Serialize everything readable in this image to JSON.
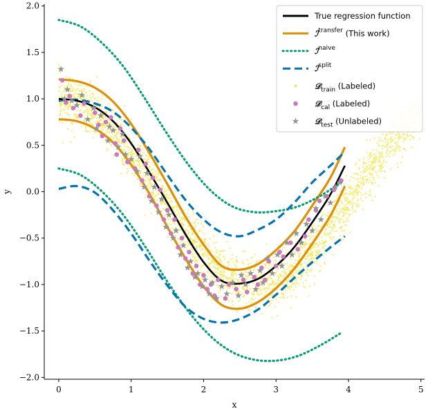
{
  "chart_data": {
    "type": "scatter",
    "xlabel": "x",
    "ylabel": "y",
    "xlim": [
      -0.2,
      5.05
    ],
    "ylim": [
      -2.02,
      2.02
    ],
    "xticks": [
      0,
      1,
      2,
      3,
      4,
      5
    ],
    "xtick_labels": [
      "0",
      "1",
      "2",
      "3",
      "4",
      "5"
    ],
    "yticks": [
      2.0,
      1.5,
      1.0,
      0.5,
      0.0,
      -0.5,
      -1.0,
      -1.5,
      -2.0
    ],
    "ytick_labels": [
      "2.0",
      "1.5",
      "1.0",
      "0.5",
      "0.0",
      "−0.5",
      "−1.0",
      "−1.5",
      "−2.0"
    ],
    "grid": false,
    "legend_position": "top-right",
    "colors": {
      "true": "#000000",
      "transfer": "#de8f05",
      "naive": "#029e73",
      "split": "#0173b2",
      "train": "#f0e442",
      "cal": "#cc78bc",
      "test": "#949494"
    },
    "legend": [
      {
        "key": "true",
        "text": "True regression function"
      },
      {
        "key": "transfer",
        "sym": "ℐ",
        "sup": "transfer",
        "text": " (This work)"
      },
      {
        "key": "naive",
        "sym": "ℐ",
        "sup": "naive",
        "text": ""
      },
      {
        "key": "split",
        "sym": "ℐ",
        "sup": "split",
        "text": ""
      },
      {
        "key": "train",
        "sym": "𝒟",
        "sub": "train",
        "text": " (Labeled)"
      },
      {
        "key": "cal",
        "sym": "𝒟",
        "sub": "cal",
        "text": " (Labeled)"
      },
      {
        "key": "test",
        "sym": "𝒟",
        "sub": "test",
        "text": " (Unlabeled)"
      }
    ],
    "series": [
      {
        "key": "true",
        "style": "solid",
        "x": [
          0.0,
          0.25,
          0.5,
          0.75,
          1.0,
          1.25,
          1.5,
          1.75,
          2.0,
          2.25,
          2.5,
          2.75,
          3.0,
          3.25,
          3.5,
          3.75,
          3.95
        ],
        "y": [
          1.0,
          0.98,
          0.91,
          0.76,
          0.52,
          0.21,
          -0.12,
          -0.46,
          -0.76,
          -0.96,
          -0.99,
          -0.94,
          -0.8,
          -0.6,
          -0.33,
          -0.03,
          0.28
        ]
      },
      {
        "key": "transfer",
        "style": "solid",
        "x": [
          0.0,
          0.25,
          0.5,
          0.75,
          1.0,
          1.25,
          1.5,
          1.75,
          2.0,
          2.25,
          2.5,
          2.75,
          3.0,
          3.25,
          3.5,
          3.75,
          3.95
        ],
        "y": [
          1.21,
          1.19,
          1.12,
          0.97,
          0.73,
          0.42,
          0.08,
          -0.27,
          -0.57,
          -0.8,
          -0.84,
          -0.78,
          -0.63,
          -0.43,
          -0.15,
          0.15,
          0.48
        ]
      },
      {
        "key": "transfer",
        "style": "solid",
        "x": [
          0.0,
          0.25,
          0.5,
          0.75,
          1.0,
          1.25,
          1.5,
          1.75,
          2.0,
          2.25,
          2.5,
          2.75,
          3.0,
          3.25,
          3.5,
          3.75,
          3.95
        ],
        "y": [
          0.78,
          0.76,
          0.68,
          0.53,
          0.29,
          -0.02,
          -0.38,
          -0.72,
          -1.02,
          -1.22,
          -1.26,
          -1.19,
          -1.04,
          -0.83,
          -0.56,
          -0.26,
          0.06
        ]
      },
      {
        "key": "naive",
        "style": "dotted",
        "x": [
          0.0,
          0.3,
          0.6,
          0.9,
          1.2,
          1.5,
          1.8,
          2.1,
          2.4,
          2.7,
          3.0,
          3.3,
          3.6,
          3.9
        ],
        "y": [
          1.85,
          1.78,
          1.6,
          1.34,
          0.99,
          0.62,
          0.28,
          0.01,
          -0.16,
          -0.22,
          -0.21,
          -0.16,
          -0.05,
          0.1
        ]
      },
      {
        "key": "naive",
        "style": "dotted",
        "x": [
          0.0,
          0.3,
          0.6,
          0.9,
          1.2,
          1.5,
          1.8,
          2.1,
          2.4,
          2.7,
          3.0,
          3.3,
          3.6,
          3.9
        ],
        "y": [
          0.25,
          0.18,
          0.0,
          -0.26,
          -0.6,
          -0.97,
          -1.3,
          -1.56,
          -1.73,
          -1.81,
          -1.82,
          -1.77,
          -1.66,
          -1.52
        ]
      },
      {
        "key": "split",
        "style": "dashed",
        "x": [
          0.0,
          0.25,
          0.5,
          0.75,
          1.0,
          1.25,
          1.5,
          1.75,
          2.0,
          2.25,
          2.5,
          2.75,
          3.0,
          3.25,
          3.5,
          3.75,
          3.95
        ],
        "y": [
          0.98,
          0.99,
          0.95,
          0.86,
          0.69,
          0.46,
          0.18,
          -0.09,
          -0.3,
          -0.44,
          -0.48,
          -0.41,
          -0.3,
          -0.12,
          0.1,
          0.28,
          0.43
        ]
      },
      {
        "key": "split",
        "style": "dashed",
        "x": [
          0.0,
          0.25,
          0.5,
          0.75,
          1.0,
          1.25,
          1.5,
          1.75,
          2.0,
          2.25,
          2.5,
          2.75,
          3.0,
          3.25,
          3.5,
          3.75,
          3.95
        ],
        "y": [
          0.03,
          0.06,
          -0.01,
          -0.2,
          -0.45,
          -0.74,
          -1.01,
          -1.24,
          -1.37,
          -1.41,
          -1.37,
          -1.27,
          -1.11,
          -0.93,
          -0.76,
          -0.6,
          -0.48
        ]
      }
    ],
    "cal_points": [
      [
        0.05,
        1.2
      ],
      [
        0.1,
        0.96
      ],
      [
        0.15,
        1.03
      ],
      [
        0.2,
        0.9
      ],
      [
        0.3,
        0.82
      ],
      [
        0.35,
        0.95
      ],
      [
        0.5,
        0.85
      ],
      [
        0.55,
        0.72
      ],
      [
        0.6,
        0.6
      ],
      [
        0.65,
        0.75
      ],
      [
        0.72,
        0.8
      ],
      [
        0.78,
        0.52
      ],
      [
        0.8,
        0.4
      ],
      [
        0.85,
        0.68
      ],
      [
        0.9,
        0.55
      ],
      [
        0.95,
        0.32
      ],
      [
        1.05,
        0.25
      ],
      [
        1.1,
        0.45
      ],
      [
        1.15,
        0.12
      ],
      [
        1.2,
        0.3
      ],
      [
        1.25,
        -0.05
      ],
      [
        1.3,
        0.15
      ],
      [
        1.35,
        -0.15
      ],
      [
        1.4,
        0.02
      ],
      [
        1.45,
        -0.3
      ],
      [
        1.5,
        -0.2
      ],
      [
        1.55,
        -0.45
      ],
      [
        1.6,
        -0.3
      ],
      [
        1.65,
        -0.6
      ],
      [
        1.7,
        -0.5
      ],
      [
        1.75,
        -0.72
      ],
      [
        1.8,
        -0.65
      ],
      [
        1.85,
        -0.88
      ],
      [
        1.9,
        -0.8
      ],
      [
        1.95,
        -1.0
      ],
      [
        2.0,
        -0.9
      ],
      [
        2.05,
        -1.05
      ],
      [
        2.1,
        -1.0
      ],
      [
        2.15,
        -1.12
      ],
      [
        2.2,
        -0.95
      ],
      [
        2.3,
        -1.15
      ],
      [
        2.35,
        -1.0
      ],
      [
        2.45,
        -1.05
      ],
      [
        2.55,
        -0.95
      ],
      [
        2.6,
        -1.08
      ],
      [
        2.7,
        -0.92
      ],
      [
        2.75,
        -1.0
      ],
      [
        2.8,
        -0.82
      ],
      [
        2.85,
        -0.95
      ],
      [
        2.9,
        -0.75
      ],
      [
        3.0,
        -0.8
      ],
      [
        3.05,
        -0.65
      ],
      [
        3.1,
        -0.7
      ],
      [
        3.2,
        -0.55
      ],
      [
        3.3,
        -0.62
      ],
      [
        3.4,
        -0.48
      ],
      [
        3.45,
        -0.3
      ],
      [
        3.55,
        -0.2
      ],
      [
        3.6,
        -0.1
      ],
      [
        3.7,
        -0.05
      ],
      [
        3.8,
        0.02
      ],
      [
        3.9,
        0.12
      ]
    ],
    "test_points": [
      [
        0.03,
        1.32
      ],
      [
        0.08,
        1.0
      ],
      [
        0.12,
        1.1
      ],
      [
        0.18,
        0.98
      ],
      [
        0.25,
        0.93
      ],
      [
        0.32,
        1.04
      ],
      [
        0.4,
        0.78
      ],
      [
        0.48,
        0.9
      ],
      [
        0.52,
        0.68
      ],
      [
        0.58,
        0.82
      ],
      [
        0.68,
        0.55
      ],
      [
        0.7,
        0.7
      ],
      [
        0.75,
        0.66
      ],
      [
        0.82,
        0.48
      ],
      [
        0.88,
        0.62
      ],
      [
        0.92,
        0.4
      ],
      [
        1.0,
        0.35
      ],
      [
        1.08,
        0.22
      ],
      [
        1.12,
        0.38
      ],
      [
        1.18,
        0.05
      ],
      [
        1.22,
        0.2
      ],
      [
        1.28,
        -0.1
      ],
      [
        1.32,
        0.05
      ],
      [
        1.38,
        -0.22
      ],
      [
        1.42,
        -0.08
      ],
      [
        1.48,
        -0.38
      ],
      [
        1.52,
        -0.25
      ],
      [
        1.58,
        -0.5
      ],
      [
        1.62,
        -0.42
      ],
      [
        1.68,
        -0.68
      ],
      [
        1.72,
        -0.58
      ],
      [
        1.78,
        -0.82
      ],
      [
        1.82,
        -0.75
      ],
      [
        1.88,
        -0.92
      ],
      [
        1.92,
        -0.88
      ],
      [
        1.98,
        -1.02
      ],
      [
        2.02,
        -0.95
      ],
      [
        2.08,
        -1.1
      ],
      [
        2.12,
        -0.98
      ],
      [
        2.18,
        -1.15
      ],
      [
        2.25,
        -1.02
      ],
      [
        2.32,
        -1.1
      ],
      [
        2.4,
        -0.98
      ],
      [
        2.48,
        -1.12
      ],
      [
        2.52,
        -0.9
      ],
      [
        2.58,
        -1.0
      ],
      [
        2.65,
        -0.88
      ],
      [
        2.72,
        -1.05
      ],
      [
        2.78,
        -0.85
      ],
      [
        2.82,
        -0.98
      ],
      [
        2.88,
        -0.72
      ],
      [
        2.95,
        -0.88
      ],
      [
        3.02,
        -0.68
      ],
      [
        3.08,
        -0.8
      ],
      [
        3.15,
        -0.55
      ],
      [
        3.22,
        -0.68
      ],
      [
        3.28,
        -0.45
      ],
      [
        3.35,
        -0.55
      ],
      [
        3.42,
        -0.35
      ],
      [
        3.5,
        -0.42
      ],
      [
        3.55,
        -0.18
      ],
      [
        3.62,
        -0.3
      ],
      [
        3.68,
        -0.05
      ],
      [
        3.75,
        -0.12
      ],
      [
        3.82,
        0.05
      ],
      [
        3.88,
        0.1
      ]
    ]
  }
}
